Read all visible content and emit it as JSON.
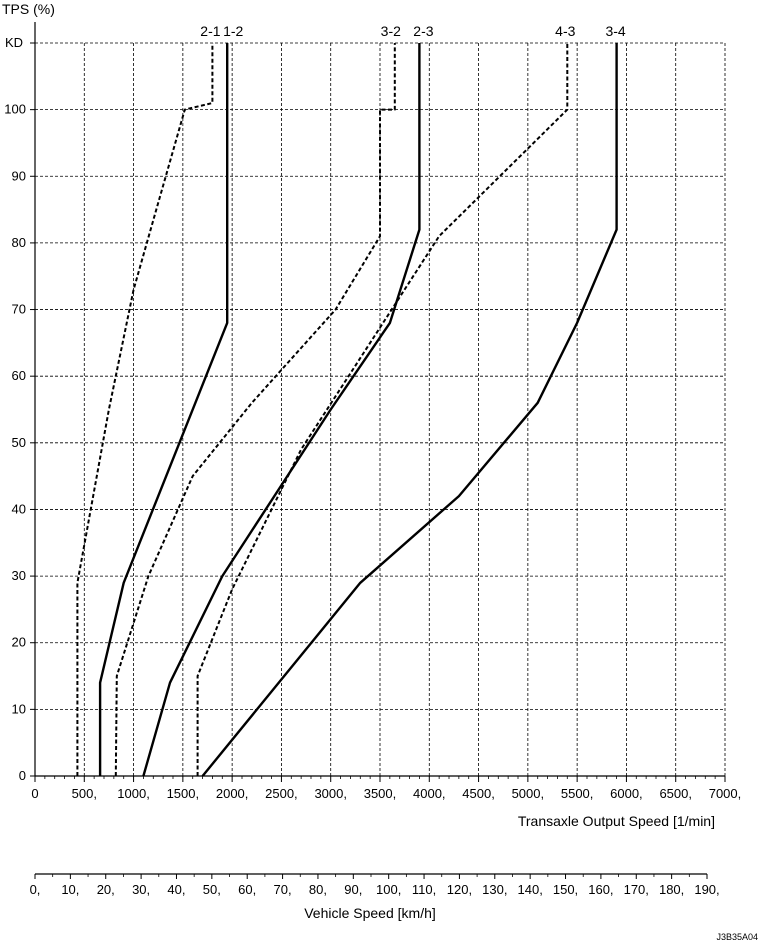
{
  "chart_data": {
    "type": "line",
    "y_axis": {
      "title": "TPS (%)",
      "ylim": [
        0,
        110
      ],
      "ticks": [
        0,
        10,
        20,
        30,
        40,
        50,
        60,
        70,
        80,
        90,
        100
      ],
      "tick_labels": [
        "0",
        "10",
        "20",
        "30",
        "40",
        "50",
        "60",
        "70",
        "80",
        "90",
        "100"
      ],
      "kickdown_label": "KD",
      "kickdown_value": 110
    },
    "x_axis": {
      "title": "Transaxle Output Speed [1/min]",
      "xlim": [
        0,
        7000
      ],
      "ticks": [
        0,
        500,
        1000,
        1500,
        2000,
        2500,
        3000,
        3500,
        4000,
        4500,
        5000,
        5500,
        6000,
        6500,
        7000
      ],
      "tick_labels": [
        "0",
        "500,",
        "1000,",
        "1500,",
        "2000,",
        "2500,",
        "3000,",
        "3500,",
        "4000,",
        "4500,",
        "5000,",
        "5500,",
        "6000,",
        "6500,",
        "7000,"
      ]
    },
    "secondary_x_axis": {
      "title": "Vehicle Speed [km/h]",
      "xlim": [
        0,
        190
      ],
      "ticks": [
        0,
        10,
        20,
        30,
        40,
        50,
        60,
        70,
        80,
        90,
        100,
        110,
        120,
        130,
        140,
        150,
        160,
        170,
        180,
        190
      ],
      "tick_labels": [
        "0,",
        "10,",
        "20,",
        "30,",
        "40,",
        "50,",
        "60,",
        "70,",
        "80,",
        "90,",
        "100,",
        "110,",
        "120,",
        "130,",
        "140,",
        "150,",
        "160,",
        "170,",
        "180,",
        "190,"
      ]
    },
    "grid": true,
    "series": [
      {
        "name": "2-1",
        "style": "dashed",
        "points": [
          [
            430,
            0
          ],
          [
            430,
            29
          ],
          [
            750,
            55
          ],
          [
            1000,
            73
          ],
          [
            1250,
            86
          ],
          [
            1520,
            100
          ],
          [
            1800,
            101
          ],
          [
            1800,
            110
          ]
        ]
      },
      {
        "name": "1-2",
        "style": "solid",
        "points": [
          [
            660,
            0
          ],
          [
            660,
            14
          ],
          [
            900,
            29
          ],
          [
            1950,
            68
          ],
          [
            1950,
            110
          ]
        ]
      },
      {
        "name": "3-2",
        "style": "dashed",
        "points": [
          [
            820,
            0
          ],
          [
            830,
            15
          ],
          [
            1150,
            30
          ],
          [
            1600,
            45
          ],
          [
            2200,
            56
          ],
          [
            3050,
            70
          ],
          [
            3500,
            81
          ],
          [
            3500,
            100
          ],
          [
            3650,
            100
          ],
          [
            3650,
            110
          ]
        ]
      },
      {
        "name": "2-3",
        "style": "solid",
        "points": [
          [
            1100,
            0
          ],
          [
            1370,
            14
          ],
          [
            1900,
            30
          ],
          [
            3000,
            55
          ],
          [
            3600,
            68
          ],
          [
            3900,
            82
          ],
          [
            3900,
            110
          ]
        ]
      },
      {
        "name": "4-3",
        "style": "dashed",
        "points": [
          [
            1650,
            0
          ],
          [
            1650,
            15
          ],
          [
            2000,
            28
          ],
          [
            2700,
            49
          ],
          [
            3400,
            65
          ],
          [
            4100,
            81
          ],
          [
            5400,
            100
          ],
          [
            5400,
            110
          ]
        ]
      },
      {
        "name": "3-4",
        "style": "solid",
        "points": [
          [
            1700,
            0
          ],
          [
            3300,
            29
          ],
          [
            4300,
            42
          ],
          [
            5100,
            56
          ],
          [
            5500,
            68
          ],
          [
            5900,
            82
          ],
          [
            5900,
            110
          ]
        ]
      }
    ],
    "curve_labels": [
      "2-1",
      "1-2",
      "3-2",
      "2-3",
      "4-3",
      "3-4"
    ]
  },
  "figure_code": "J3B35A04",
  "colors": {
    "line": "#000000",
    "grid": "#000000",
    "background": "#ffffff"
  }
}
